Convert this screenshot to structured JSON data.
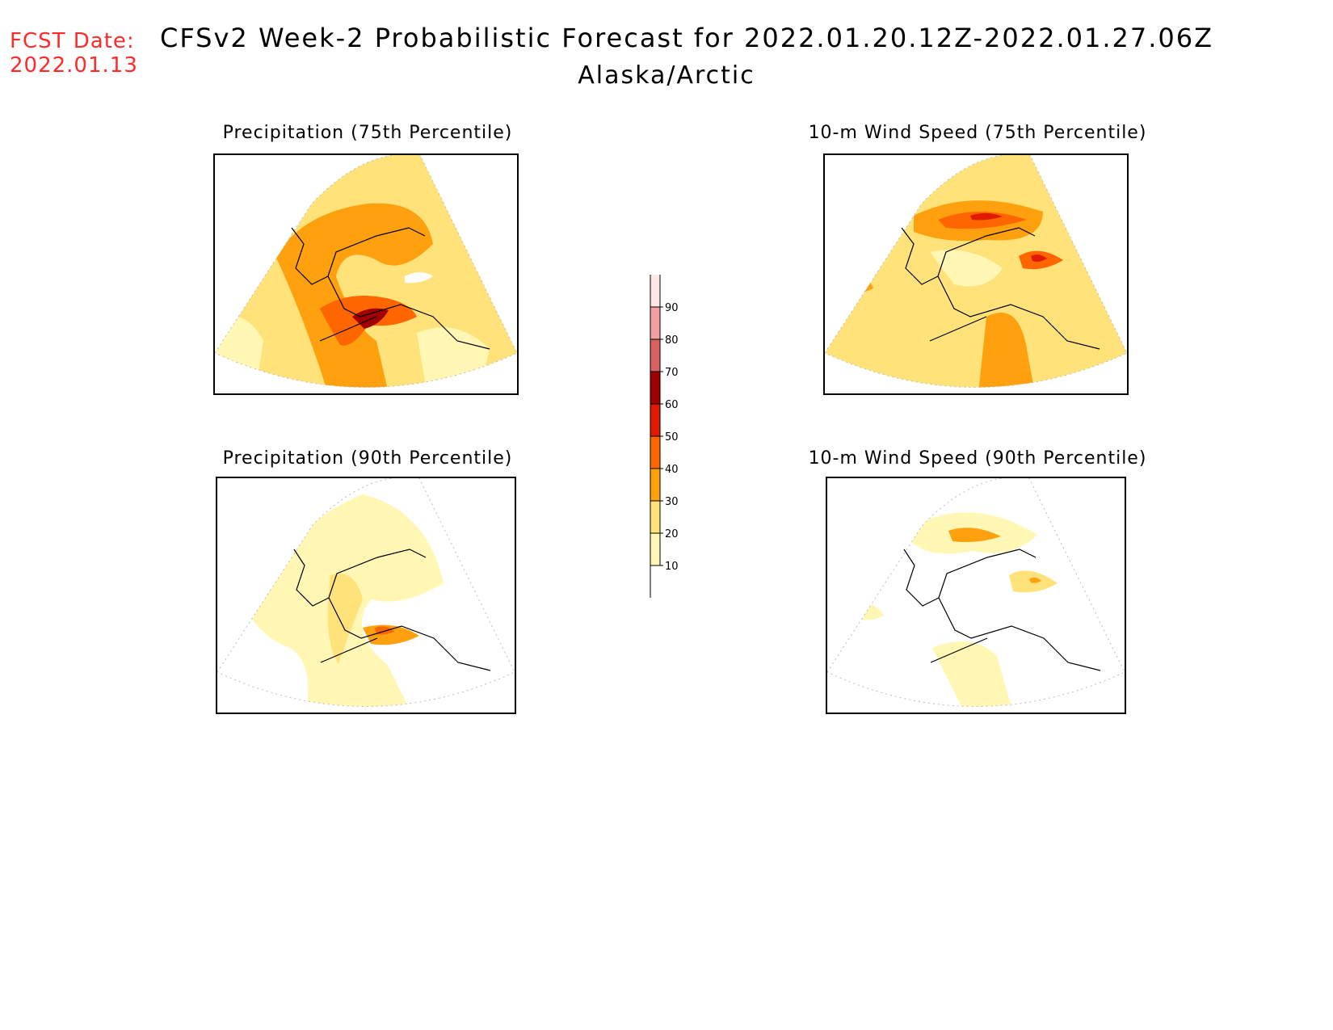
{
  "header": {
    "fcst_label": "FCST Date:",
    "fcst_date": "2022.01.13",
    "title": "CFSv2 Week-2 Probabilistic Forecast for 2022.01.20.12Z-2022.01.27.06Z",
    "region": "Alaska/Arctic"
  },
  "panels": [
    {
      "id": "precip75",
      "title": "Precipitation (75th Percentile)"
    },
    {
      "id": "wind75",
      "title": "10-m Wind Speed (75th Percentile)"
    },
    {
      "id": "precip90",
      "title": "Precipitation (90th Percentile)"
    },
    {
      "id": "wind90",
      "title": "10-m Wind Speed (90th Percentile)"
    }
  ],
  "colorbar": {
    "levels": [
      10,
      20,
      30,
      40,
      50,
      60,
      70,
      80,
      90
    ],
    "colors": [
      "#fff7b3",
      "#ffe37a",
      "#ffa10f",
      "#ff6600",
      "#e01a00",
      "#a00000",
      "#d96060",
      "#f2a0a0",
      "#fde6e6"
    ]
  }
}
